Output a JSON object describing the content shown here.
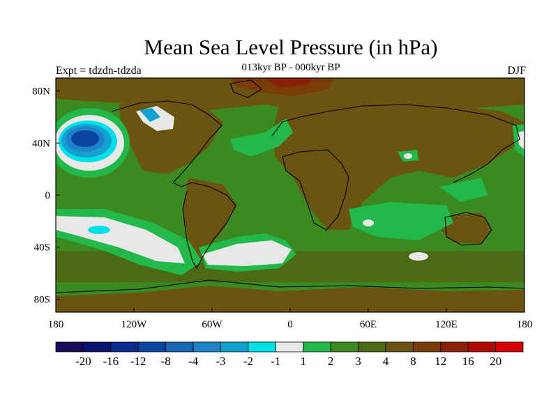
{
  "figure": {
    "title": "Mean Sea Level Pressure (in hPa)",
    "subtitle": "013kyr BP - 000kyr BP",
    "left_label": "Expt = tdzdn-tdzda",
    "right_label": "DJF"
  },
  "chart_data": {
    "type": "heatmap",
    "variable": "Mean sea level pressure difference",
    "units": "hPa",
    "x_range": [
      -180,
      180
    ],
    "y_range": [
      -90,
      90
    ],
    "x_ticks": [
      {
        "value": -180,
        "label": "180"
      },
      {
        "value": -120,
        "label": "120W"
      },
      {
        "value": -60,
        "label": "60W"
      },
      {
        "value": 0,
        "label": "0"
      },
      {
        "value": 60,
        "label": "60E"
      },
      {
        "value": 120,
        "label": "120E"
      },
      {
        "value": 180,
        "label": "180"
      }
    ],
    "y_ticks": [
      {
        "value": 80,
        "label": "80N"
      },
      {
        "value": 40,
        "label": "40N"
      },
      {
        "value": 0,
        "label": "0"
      },
      {
        "value": -40,
        "label": "40S"
      },
      {
        "value": -80,
        "label": "80S"
      }
    ],
    "colorbar": {
      "labels": [
        "-20",
        "-16",
        "-12",
        "-8",
        "-4",
        "-3",
        "-2",
        "-1",
        "1",
        "2",
        "3",
        "4",
        "8",
        "12",
        "16",
        "20"
      ],
      "colors": [
        "#1a0a5c",
        "#0a1470",
        "#0a2a90",
        "#0a44a0",
        "#1a64b4",
        "#1e82c8",
        "#12a2d0",
        "#00e0e8",
        "#e8e8e8",
        "#22b84a",
        "#3a8a20",
        "#4c6a14",
        "#6a5410",
        "#7a3c08",
        "#8a2006",
        "#b40a04",
        "#d80000"
      ]
    },
    "features": [
      {
        "name": "North Pacific low anomaly",
        "lon": -160,
        "lat": 43,
        "min_value": -12
      },
      {
        "name": "South Pacific negative band",
        "lon": -105,
        "lat": -35,
        "min_value": -3
      },
      {
        "name": "Southern Ocean negative band",
        "lon": -30,
        "lat": -45,
        "min_value": -1
      },
      {
        "name": "Arctic high anomaly",
        "lon": 0,
        "lat": 85,
        "max_value": 12
      },
      {
        "name": "Continental high (Eurasia/Africa)",
        "lon": 30,
        "lat": 20,
        "max_value": 8
      }
    ]
  }
}
